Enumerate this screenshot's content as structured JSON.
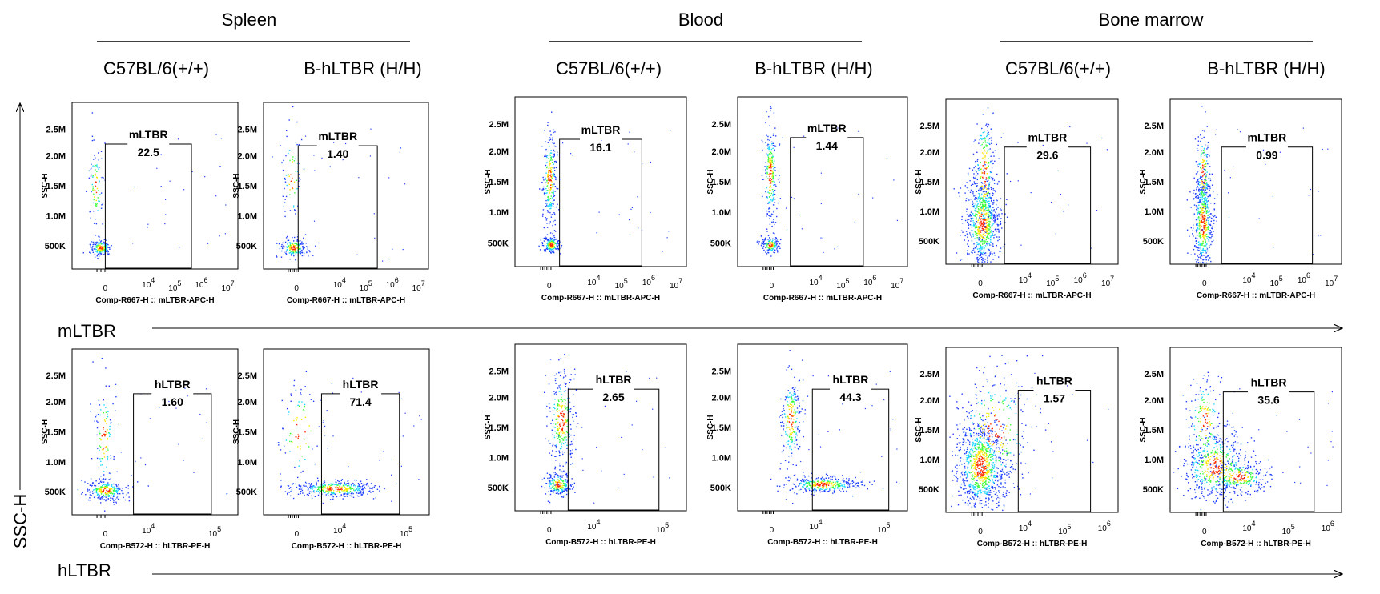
{
  "tissues": [
    "Spleen",
    "Blood",
    "Bone marrow"
  ],
  "genotypes": [
    "C57BL/6(+/+)",
    "B-hLTBR (H/H)"
  ],
  "row_labels": [
    "mLTBR",
    "hLTBR"
  ],
  "y_axis_title": "SSC-H",
  "colors": {
    "density_low": "#1f3fff",
    "density_mid": "#19d7ff",
    "density_mid2": "#3cff3c",
    "density_high": "#ffe600",
    "density_peak": "#ff2a00",
    "frame": "#000000"
  },
  "chart_data": [
    {
      "type": "scatter",
      "row": 0,
      "col": 0,
      "tissue": "Spleen",
      "genotype": "C57BL/6(+/+)",
      "ylabel": "SSC-H",
      "xlabel": "Comp-R667-H :: mLTBR-APC-H",
      "gate": "mLTBR",
      "percent": "22.5",
      "yticks": [
        "2.5M",
        "2.0M",
        "1.5M",
        "1.0M",
        "500K"
      ],
      "xticks": [
        "0",
        "10^4",
        "10^5",
        "10^6",
        "10^7"
      ]
    },
    {
      "type": "scatter",
      "row": 0,
      "col": 1,
      "tissue": "Spleen",
      "genotype": "B-hLTBR (H/H)",
      "ylabel": "SSC-H",
      "xlabel": "Comp-R667-H :: mLTBR-APC-H",
      "gate": "mLTBR",
      "percent": "1.40",
      "yticks": [
        "2.5M",
        "2.0M",
        "1.5M",
        "1.0M",
        "500K"
      ],
      "xticks": [
        "0",
        "10^4",
        "10^5",
        "10^6",
        "10^7"
      ]
    },
    {
      "type": "scatter",
      "row": 0,
      "col": 2,
      "tissue": "Blood",
      "genotype": "C57BL/6(+/+)",
      "ylabel": "SSC-H",
      "xlabel": "Comp-R667-H :: mLTBR-APC-H",
      "gate": "mLTBR",
      "percent": "16.1",
      "yticks": [
        "2.5M",
        "2.0M",
        "1.5M",
        "1.0M",
        "500K"
      ],
      "xticks": [
        "0",
        "10^4",
        "10^5",
        "10^6",
        "10^7"
      ]
    },
    {
      "type": "scatter",
      "row": 0,
      "col": 3,
      "tissue": "Blood",
      "genotype": "B-hLTBR (H/H)",
      "ylabel": "SSC-H",
      "xlabel": "Comp-R667-H :: mLTBR-APC-H",
      "gate": "mLTBR",
      "percent": "1.44",
      "yticks": [
        "2.5M",
        "2.0M",
        "1.5M",
        "1.0M",
        "500K"
      ],
      "xticks": [
        "0",
        "10^4",
        "10^5",
        "10^6",
        "10^7"
      ]
    },
    {
      "type": "scatter",
      "row": 0,
      "col": 4,
      "tissue": "Bone marrow",
      "genotype": "C57BL/6(+/+)",
      "ylabel": "SSC-H",
      "xlabel": "Comp-R667-H :: mLTBR-APC-H",
      "gate": "mLTBR",
      "percent": "29.6",
      "yticks": [
        "2.5M",
        "2.0M",
        "1.5M",
        "1.0M",
        "500K"
      ],
      "xticks": [
        "0",
        "10^4",
        "10^5",
        "10^6",
        "10^7"
      ]
    },
    {
      "type": "scatter",
      "row": 0,
      "col": 5,
      "tissue": "Bone marrow",
      "genotype": "B-hLTBR (H/H)",
      "ylabel": "SSC-H",
      "xlabel": "Comp-R667-H :: mLTBR-APC-H",
      "gate": "mLTBR",
      "percent": "0.99",
      "yticks": [
        "2.5M",
        "2.0M",
        "1.5M",
        "1.0M",
        "500K"
      ],
      "xticks": [
        "0",
        "10^4",
        "10^5",
        "10^6",
        "10^7"
      ]
    },
    {
      "type": "scatter",
      "row": 1,
      "col": 0,
      "tissue": "Spleen",
      "genotype": "C57BL/6(+/+)",
      "ylabel": "SSC-H",
      "xlabel": "Comp-B572-H :: hLTBR-PE-H",
      "gate": "hLTBR",
      "percent": "1.60",
      "yticks": [
        "2.5M",
        "2.0M",
        "1.5M",
        "1.0M",
        "500K"
      ],
      "xticks": [
        "0",
        "10^4",
        "10^5"
      ]
    },
    {
      "type": "scatter",
      "row": 1,
      "col": 1,
      "tissue": "Spleen",
      "genotype": "B-hLTBR (H/H)",
      "ylabel": "SSC-H",
      "xlabel": "Comp-B572-H :: hLTBR-PE-H",
      "gate": "hLTBR",
      "percent": "71.4",
      "yticks": [
        "2.5M",
        "2.0M",
        "1.5M",
        "1.0M",
        "500K"
      ],
      "xticks": [
        "0",
        "10^4",
        "10^5"
      ]
    },
    {
      "type": "scatter",
      "row": 1,
      "col": 2,
      "tissue": "Blood",
      "genotype": "C57BL/6(+/+)",
      "ylabel": "SSC-H",
      "xlabel": "Comp-B572-H :: hLTBR-PE-H",
      "gate": "hLTBR",
      "percent": "2.65",
      "yticks": [
        "2.5M",
        "2.0M",
        "1.5M",
        "1.0M",
        "500K"
      ],
      "xticks": [
        "0",
        "10^4",
        "10^5"
      ]
    },
    {
      "type": "scatter",
      "row": 1,
      "col": 3,
      "tissue": "Blood",
      "genotype": "B-hLTBR (H/H)",
      "ylabel": "SSC-H",
      "xlabel": "Comp-B572-H :: hLTBR-PE-H",
      "gate": "hLTBR",
      "percent": "44.3",
      "yticks": [
        "2.5M",
        "2.0M",
        "1.5M",
        "1.0M",
        "500K"
      ],
      "xticks": [
        "0",
        "10^4",
        "10^5"
      ]
    },
    {
      "type": "scatter",
      "row": 1,
      "col": 4,
      "tissue": "Bone marrow",
      "genotype": "C57BL/6(+/+)",
      "ylabel": "SSC-H",
      "xlabel": "Comp-B572-H :: hLTBR-PE-H",
      "gate": "hLTBR",
      "percent": "1.57",
      "yticks": [
        "2.5M",
        "2.0M",
        "1.5M",
        "1.0M",
        "500K"
      ],
      "xticks": [
        "0",
        "10^4",
        "10^5",
        "10^6"
      ]
    },
    {
      "type": "scatter",
      "row": 1,
      "col": 5,
      "tissue": "Bone marrow",
      "genotype": "B-hLTBR (H/H)",
      "ylabel": "SSC-H",
      "xlabel": "Comp-B572-H :: hLTBR-PE-H",
      "gate": "hLTBR",
      "percent": "35.6",
      "yticks": [
        "2.5M",
        "2.0M",
        "1.5M",
        "1.0M",
        "500K"
      ],
      "xticks": [
        "0",
        "10^4",
        "10^5",
        "10^6"
      ]
    }
  ]
}
